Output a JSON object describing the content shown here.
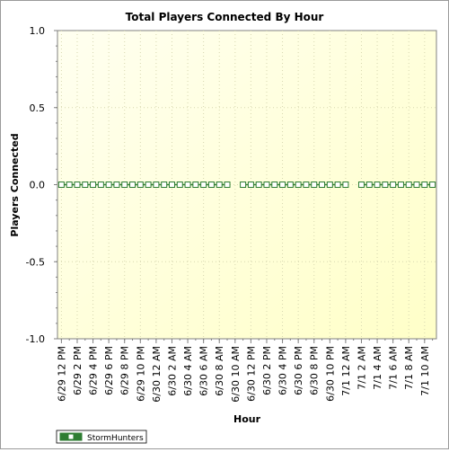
{
  "chart_data": {
    "type": "line",
    "title": "Total Players Connected By Hour",
    "xlabel": "Hour",
    "ylabel": "Players Connected",
    "ylim": [
      -1.0,
      1.0
    ],
    "y_ticks": [
      "1.0",
      "0.5",
      "0.0",
      "-0.5",
      "-1.0"
    ],
    "x_tick_labels": [
      "6/29 12 PM",
      "6/29 2 PM",
      "6/29 4 PM",
      "6/29 6 PM",
      "6/29 8 PM",
      "6/29 10 PM",
      "6/30 12 AM",
      "6/30 2 AM",
      "6/30 4 AM",
      "6/30 6 AM",
      "6/30 8 AM",
      "6/30 10 AM",
      "6/30 12 PM",
      "6/30 2 PM",
      "6/30 4 PM",
      "6/30 6 PM",
      "6/30 8 PM",
      "6/30 10 PM",
      "7/1 12 AM",
      "7/1 2 AM",
      "7/1 4 AM",
      "7/1 6 AM",
      "7/1 8 AM",
      "7/1 10 AM"
    ],
    "grid": true,
    "legend_position": "bottom-left",
    "background_color": "#ffffe0",
    "series": [
      {
        "name": "StormHunters",
        "color": "#2e7d32",
        "marker": "square",
        "segments": [
          {
            "hours": [
              "6/29 12 PM",
              "6/29 1 PM",
              "6/29 2 PM",
              "6/29 3 PM",
              "6/29 4 PM",
              "6/29 5 PM",
              "6/29 6 PM",
              "6/29 7 PM",
              "6/29 8 PM",
              "6/29 9 PM",
              "6/29 10 PM",
              "6/29 11 PM",
              "6/30 12 AM",
              "6/30 1 AM",
              "6/30 2 AM",
              "6/30 3 AM",
              "6/30 4 AM",
              "6/30 5 AM",
              "6/30 6 AM",
              "6/30 7 AM",
              "6/30 8 AM",
              "6/30 9 AM"
            ],
            "values": [
              0,
              0,
              0,
              0,
              0,
              0,
              0,
              0,
              0,
              0,
              0,
              0,
              0,
              0,
              0,
              0,
              0,
              0,
              0,
              0,
              0,
              0
            ]
          },
          {
            "hours": [
              "6/30 11 AM",
              "6/30 12 PM",
              "6/30 1 PM",
              "6/30 2 PM",
              "6/30 3 PM",
              "6/30 4 PM",
              "6/30 5 PM",
              "6/30 6 PM",
              "6/30 7 PM",
              "6/30 8 PM",
              "6/30 9 PM",
              "6/30 10 PM",
              "6/30 11 PM",
              "7/1 12 AM"
            ],
            "values": [
              0,
              0,
              0,
              0,
              0,
              0,
              0,
              0,
              0,
              0,
              0,
              0,
              0,
              0
            ]
          },
          {
            "hours": [
              "7/1 2 AM",
              "7/1 3 AM",
              "7/1 4 AM",
              "7/1 5 AM",
              "7/1 6 AM",
              "7/1 7 AM",
              "7/1 8 AM",
              "7/1 9 AM",
              "7/1 10 AM",
              "7/1 11 AM"
            ],
            "values": [
              0,
              0,
              0,
              0,
              0,
              0,
              0,
              0,
              0,
              0
            ]
          }
        ]
      }
    ]
  }
}
